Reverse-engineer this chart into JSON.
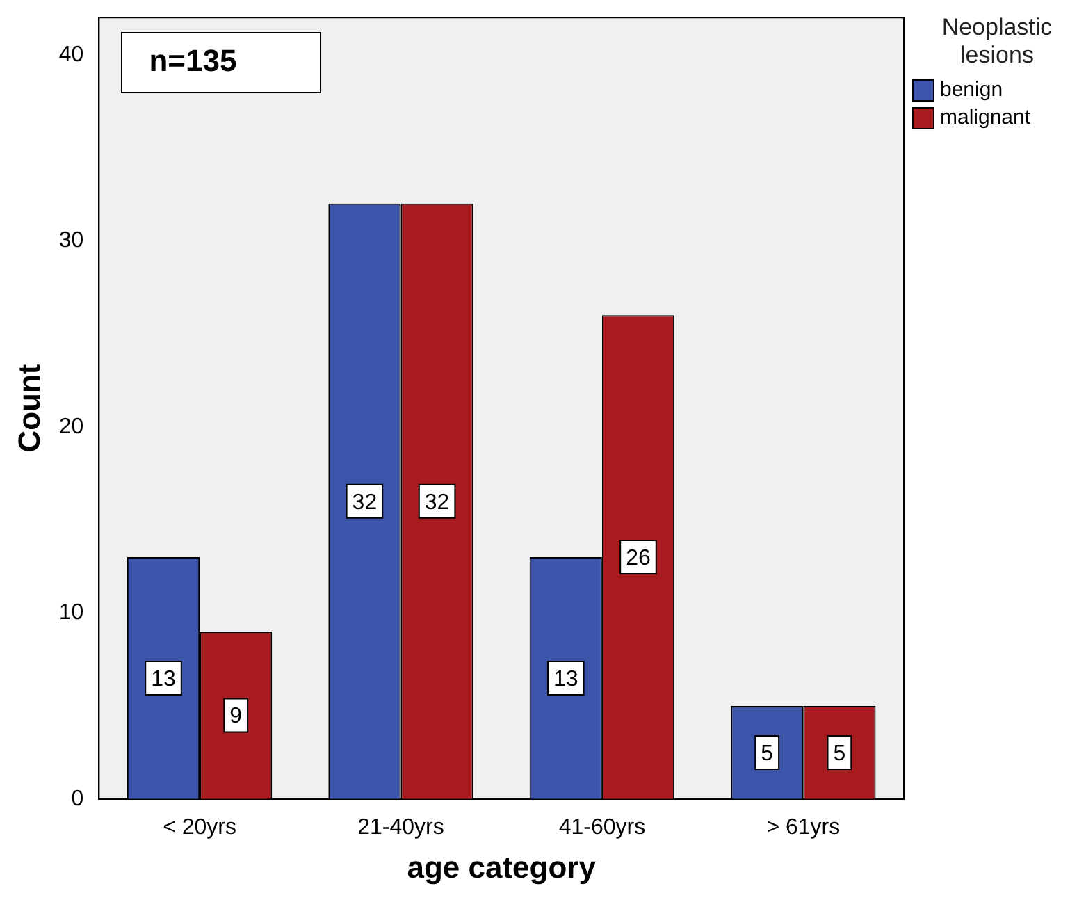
{
  "chart_data": {
    "type": "bar",
    "xlabel": "age category",
    "ylabel": "Count",
    "legend_title": "Neoplastic lesions",
    "categories": [
      "< 20yrs",
      "21-40yrs",
      "41-60yrs",
      "> 61yrs"
    ],
    "series": [
      {
        "name": "benign",
        "color": "#3c55aa",
        "values": [
          13,
          32,
          13,
          5
        ]
      },
      {
        "name": "malignant",
        "color": "#a81c1f",
        "values": [
          9,
          32,
          26,
          5
        ]
      }
    ],
    "ylim": [
      0,
      42
    ],
    "yticks": [
      0,
      10,
      20,
      30,
      40
    ],
    "grid": false,
    "legend": "top right",
    "data_labels": true,
    "annotations": [
      "n=135"
    ]
  }
}
